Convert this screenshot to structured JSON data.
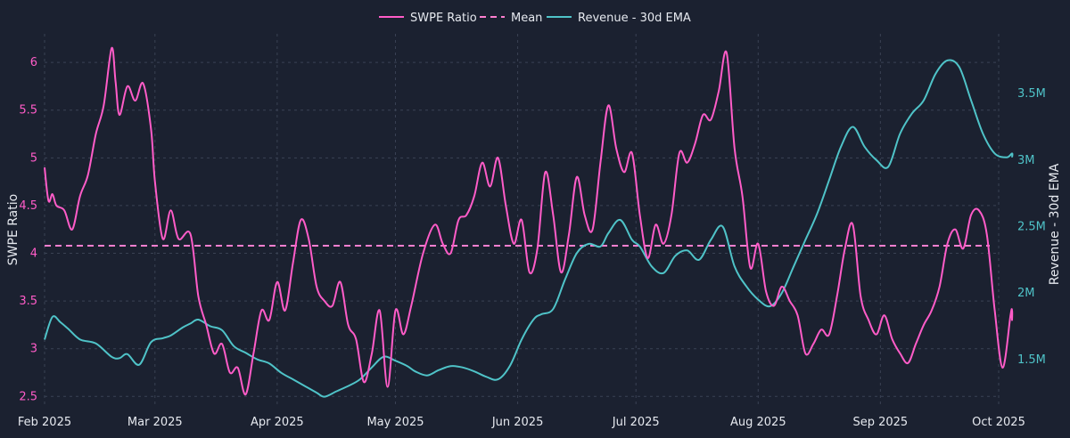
{
  "chart_data": {
    "type": "line",
    "title": "",
    "legend": {
      "placement": "top-center",
      "entries": [
        {
          "label": "SWPE Ratio",
          "style": "solid",
          "color": "#ff5cc8"
        },
        {
          "label": "Mean",
          "style": "dashed",
          "color": "#ff7fd0"
        },
        {
          "label": "Revenue - 30d EMA",
          "style": "solid",
          "color": "#4fc3c8"
        }
      ]
    },
    "x_axis": {
      "ticks": [
        "Feb 2025",
        "Mar 2025",
        "Apr 2025",
        "May 2025",
        "Jun 2025",
        "Jul 2025",
        "Aug 2025",
        "Sep 2025",
        "Oct 2025"
      ],
      "range": [
        "2025-02-01",
        "2025-10-01"
      ]
    },
    "y_left": {
      "label": "SWPE Ratio",
      "range": [
        2.4,
        6.3
      ],
      "ticks": [
        2.5,
        3,
        3.5,
        4,
        4.5,
        5,
        5.5,
        6
      ],
      "tick_labels": [
        "2.5",
        "3",
        "3.5",
        "4",
        "4.5",
        "5",
        "5.5",
        "6"
      ],
      "color": "#ff5cc8"
    },
    "y_right": {
      "label": "Revenue - 30d EMA",
      "range": [
        1150000,
        3950000
      ],
      "ticks": [
        1500000,
        2000000,
        2500000,
        3000000,
        3500000
      ],
      "tick_labels": [
        "1.5M",
        "2M",
        "2.5M",
        "3M",
        "3.5M"
      ],
      "color": "#4fc3c8"
    },
    "grid": true,
    "mean": 4.08,
    "series": [
      {
        "name": "SWPE Ratio",
        "axis": "left",
        "color": "#ff5cc8",
        "points": [
          [
            "2025-02-01",
            4.9
          ],
          [
            "2025-02-02",
            4.55
          ],
          [
            "2025-02-03",
            4.62
          ],
          [
            "2025-02-04",
            4.5
          ],
          [
            "2025-02-06",
            4.45
          ],
          [
            "2025-02-08",
            4.25
          ],
          [
            "2025-02-10",
            4.6
          ],
          [
            "2025-02-12",
            4.82
          ],
          [
            "2025-02-14",
            5.25
          ],
          [
            "2025-02-16",
            5.55
          ],
          [
            "2025-02-18",
            6.15
          ],
          [
            "2025-02-19",
            5.8
          ],
          [
            "2025-02-20",
            5.45
          ],
          [
            "2025-02-22",
            5.75
          ],
          [
            "2025-02-24",
            5.6
          ],
          [
            "2025-02-26",
            5.78
          ],
          [
            "2025-02-28",
            5.3
          ],
          [
            "2025-03-01",
            4.75
          ],
          [
            "2025-03-03",
            4.15
          ],
          [
            "2025-03-05",
            4.45
          ],
          [
            "2025-03-07",
            4.15
          ],
          [
            "2025-03-10",
            4.2
          ],
          [
            "2025-03-12",
            3.55
          ],
          [
            "2025-03-14",
            3.25
          ],
          [
            "2025-03-16",
            2.95
          ],
          [
            "2025-03-18",
            3.05
          ],
          [
            "2025-03-20",
            2.75
          ],
          [
            "2025-03-22",
            2.8
          ],
          [
            "2025-03-24",
            2.52
          ],
          [
            "2025-03-26",
            2.95
          ],
          [
            "2025-03-28",
            3.4
          ],
          [
            "2025-03-30",
            3.3
          ],
          [
            "2025-04-01",
            3.7
          ],
          [
            "2025-04-03",
            3.4
          ],
          [
            "2025-04-05",
            3.9
          ],
          [
            "2025-04-07",
            4.35
          ],
          [
            "2025-04-09",
            4.15
          ],
          [
            "2025-04-11",
            3.65
          ],
          [
            "2025-04-13",
            3.5
          ],
          [
            "2025-04-15",
            3.45
          ],
          [
            "2025-04-17",
            3.7
          ],
          [
            "2025-04-19",
            3.25
          ],
          [
            "2025-04-21",
            3.1
          ],
          [
            "2025-04-23",
            2.65
          ],
          [
            "2025-04-25",
            2.95
          ],
          [
            "2025-04-27",
            3.4
          ],
          [
            "2025-04-29",
            2.6
          ],
          [
            "2025-05-01",
            3.4
          ],
          [
            "2025-05-03",
            3.15
          ],
          [
            "2025-05-05",
            3.45
          ],
          [
            "2025-05-08",
            4.0
          ],
          [
            "2025-05-11",
            4.3
          ],
          [
            "2025-05-13",
            4.1
          ],
          [
            "2025-05-15",
            4.0
          ],
          [
            "2025-05-17",
            4.35
          ],
          [
            "2025-05-19",
            4.4
          ],
          [
            "2025-05-21",
            4.6
          ],
          [
            "2025-05-23",
            4.95
          ],
          [
            "2025-05-25",
            4.7
          ],
          [
            "2025-05-27",
            5.0
          ],
          [
            "2025-05-29",
            4.5
          ],
          [
            "2025-05-31",
            4.1
          ],
          [
            "2025-06-02",
            4.35
          ],
          [
            "2025-06-04",
            3.8
          ],
          [
            "2025-06-06",
            4.05
          ],
          [
            "2025-06-08",
            4.85
          ],
          [
            "2025-06-10",
            4.4
          ],
          [
            "2025-06-12",
            3.8
          ],
          [
            "2025-06-14",
            4.2
          ],
          [
            "2025-06-16",
            4.8
          ],
          [
            "2025-06-18",
            4.4
          ],
          [
            "2025-06-20",
            4.25
          ],
          [
            "2025-06-22",
            4.95
          ],
          [
            "2025-06-24",
            5.55
          ],
          [
            "2025-06-26",
            5.1
          ],
          [
            "2025-06-28",
            4.85
          ],
          [
            "2025-06-30",
            5.05
          ],
          [
            "2025-07-02",
            4.4
          ],
          [
            "2025-07-04",
            3.95
          ],
          [
            "2025-07-06",
            4.3
          ],
          [
            "2025-07-08",
            4.1
          ],
          [
            "2025-07-10",
            4.4
          ],
          [
            "2025-07-12",
            5.05
          ],
          [
            "2025-07-14",
            4.95
          ],
          [
            "2025-07-16",
            5.15
          ],
          [
            "2025-07-18",
            5.45
          ],
          [
            "2025-07-20",
            5.4
          ],
          [
            "2025-07-22",
            5.7
          ],
          [
            "2025-07-24",
            6.1
          ],
          [
            "2025-07-26",
            5.1
          ],
          [
            "2025-07-28",
            4.6
          ],
          [
            "2025-07-30",
            3.85
          ],
          [
            "2025-08-01",
            4.1
          ],
          [
            "2025-08-03",
            3.6
          ],
          [
            "2025-08-05",
            3.45
          ],
          [
            "2025-08-07",
            3.65
          ],
          [
            "2025-08-09",
            3.5
          ],
          [
            "2025-08-11",
            3.35
          ],
          [
            "2025-08-13",
            2.95
          ],
          [
            "2025-08-15",
            3.05
          ],
          [
            "2025-08-17",
            3.2
          ],
          [
            "2025-08-19",
            3.15
          ],
          [
            "2025-08-21",
            3.55
          ],
          [
            "2025-08-23",
            4.05
          ],
          [
            "2025-08-25",
            4.3
          ],
          [
            "2025-08-27",
            3.55
          ],
          [
            "2025-08-29",
            3.3
          ],
          [
            "2025-08-31",
            3.15
          ],
          [
            "2025-09-02",
            3.35
          ],
          [
            "2025-09-04",
            3.1
          ],
          [
            "2025-09-06",
            2.95
          ],
          [
            "2025-09-08",
            2.85
          ],
          [
            "2025-09-10",
            3.05
          ],
          [
            "2025-09-12",
            3.25
          ],
          [
            "2025-09-14",
            3.4
          ],
          [
            "2025-09-16",
            3.65
          ],
          [
            "2025-09-18",
            4.1
          ],
          [
            "2025-09-20",
            4.25
          ],
          [
            "2025-09-22",
            4.05
          ],
          [
            "2025-09-24",
            4.4
          ],
          [
            "2025-09-26",
            4.45
          ],
          [
            "2025-09-28",
            4.2
          ],
          [
            "2025-09-30",
            3.4
          ],
          [
            "2025-10-02",
            2.8
          ],
          [
            "2025-10-04",
            3.35
          ],
          [
            "2025-10-06",
            3.4
          ],
          [
            "2025-10-07",
            3.3
          ],
          [
            "2025-10-08",
            3.4
          ]
        ]
      },
      {
        "name": "Revenue - 30d EMA",
        "axis": "right",
        "color": "#4fc3c8",
        "points": [
          [
            "2025-02-01",
            1650000
          ],
          [
            "2025-02-03",
            1820000
          ],
          [
            "2025-02-05",
            1780000
          ],
          [
            "2025-02-07",
            1730000
          ],
          [
            "2025-02-10",
            1650000
          ],
          [
            "2025-02-14",
            1620000
          ],
          [
            "2025-02-18",
            1520000
          ],
          [
            "2025-02-20",
            1510000
          ],
          [
            "2025-02-22",
            1540000
          ],
          [
            "2025-02-25",
            1460000
          ],
          [
            "2025-02-28",
            1630000
          ],
          [
            "2025-03-03",
            1660000
          ],
          [
            "2025-03-05",
            1680000
          ],
          [
            "2025-03-08",
            1740000
          ],
          [
            "2025-03-10",
            1770000
          ],
          [
            "2025-03-12",
            1800000
          ],
          [
            "2025-03-15",
            1750000
          ],
          [
            "2025-03-18",
            1720000
          ],
          [
            "2025-03-21",
            1600000
          ],
          [
            "2025-03-24",
            1550000
          ],
          [
            "2025-03-27",
            1500000
          ],
          [
            "2025-03-30",
            1470000
          ],
          [
            "2025-04-02",
            1400000
          ],
          [
            "2025-04-05",
            1350000
          ],
          [
            "2025-04-08",
            1300000
          ],
          [
            "2025-04-11",
            1250000
          ],
          [
            "2025-04-13",
            1220000
          ],
          [
            "2025-04-16",
            1260000
          ],
          [
            "2025-04-19",
            1300000
          ],
          [
            "2025-04-22",
            1350000
          ],
          [
            "2025-04-25",
            1440000
          ],
          [
            "2025-04-28",
            1520000
          ],
          [
            "2025-05-01",
            1490000
          ],
          [
            "2025-05-04",
            1450000
          ],
          [
            "2025-05-06",
            1410000
          ],
          [
            "2025-05-09",
            1380000
          ],
          [
            "2025-05-12",
            1420000
          ],
          [
            "2025-05-15",
            1450000
          ],
          [
            "2025-05-18",
            1440000
          ],
          [
            "2025-05-21",
            1410000
          ],
          [
            "2025-05-24",
            1370000
          ],
          [
            "2025-05-27",
            1350000
          ],
          [
            "2025-05-30",
            1450000
          ],
          [
            "2025-06-02",
            1650000
          ],
          [
            "2025-06-05",
            1800000
          ],
          [
            "2025-06-07",
            1840000
          ],
          [
            "2025-06-10",
            1880000
          ],
          [
            "2025-06-13",
            2100000
          ],
          [
            "2025-06-16",
            2300000
          ],
          [
            "2025-06-19",
            2370000
          ],
          [
            "2025-06-22",
            2350000
          ],
          [
            "2025-06-24",
            2450000
          ],
          [
            "2025-06-27",
            2550000
          ],
          [
            "2025-06-30",
            2400000
          ],
          [
            "2025-07-02",
            2350000
          ],
          [
            "2025-07-05",
            2200000
          ],
          [
            "2025-07-08",
            2150000
          ],
          [
            "2025-07-11",
            2280000
          ],
          [
            "2025-07-14",
            2320000
          ],
          [
            "2025-07-17",
            2250000
          ],
          [
            "2025-07-20",
            2400000
          ],
          [
            "2025-07-23",
            2500000
          ],
          [
            "2025-07-26",
            2200000
          ],
          [
            "2025-07-29",
            2050000
          ],
          [
            "2025-08-01",
            1950000
          ],
          [
            "2025-08-04",
            1900000
          ],
          [
            "2025-08-07",
            2000000
          ],
          [
            "2025-08-10",
            2200000
          ],
          [
            "2025-08-13",
            2400000
          ],
          [
            "2025-08-16",
            2600000
          ],
          [
            "2025-08-19",
            2850000
          ],
          [
            "2025-08-22",
            3100000
          ],
          [
            "2025-08-25",
            3250000
          ],
          [
            "2025-08-28",
            3100000
          ],
          [
            "2025-08-31",
            3000000
          ],
          [
            "2025-09-03",
            2950000
          ],
          [
            "2025-09-06",
            3200000
          ],
          [
            "2025-09-09",
            3350000
          ],
          [
            "2025-09-12",
            3450000
          ],
          [
            "2025-09-15",
            3650000
          ],
          [
            "2025-09-18",
            3750000
          ],
          [
            "2025-09-21",
            3700000
          ],
          [
            "2025-09-24",
            3450000
          ],
          [
            "2025-09-27",
            3200000
          ],
          [
            "2025-09-30",
            3050000
          ],
          [
            "2025-10-03",
            3020000
          ],
          [
            "2025-10-05",
            3050000
          ],
          [
            "2025-10-08",
            3020000
          ]
        ]
      }
    ]
  }
}
